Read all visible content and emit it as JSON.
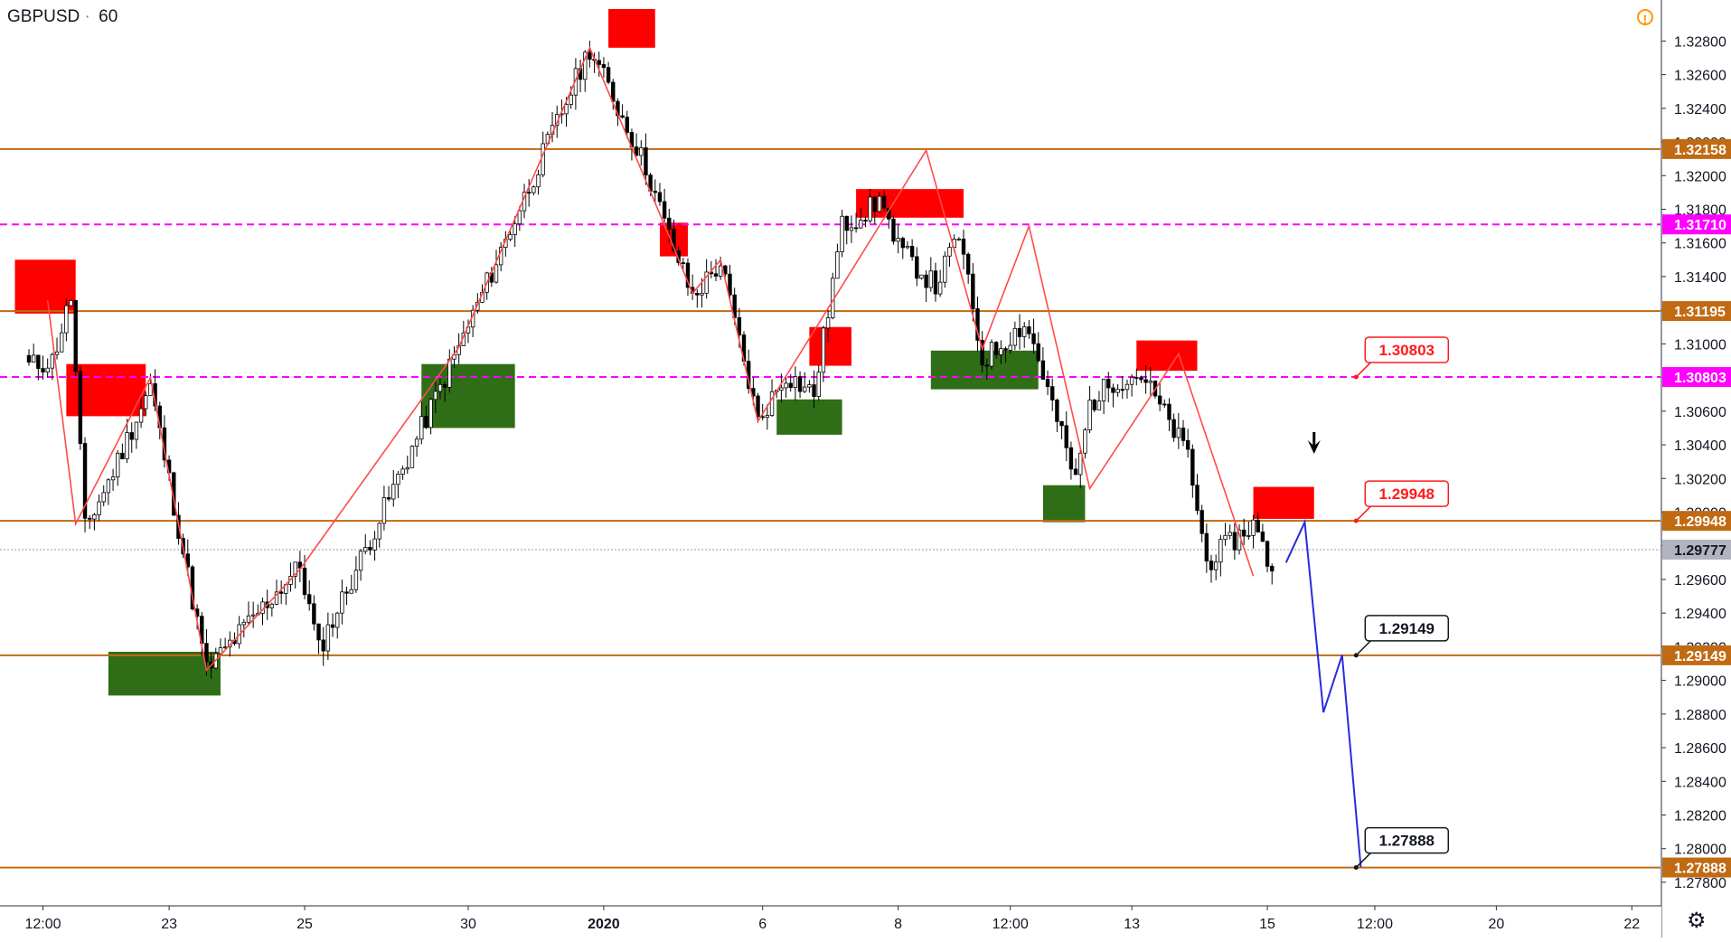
{
  "symbol": "GBPUSD",
  "interval": "60",
  "separator": "·",
  "colors": {
    "bull": "#ffffff",
    "bear": "#000000",
    "support_zone": "#2f6e16",
    "resistance_zone": "#ff0000",
    "level_line": "#c16a14",
    "magenta": "#ff00ff",
    "zigzag": "#ff4b4b",
    "projection": "#2a2adf",
    "last_price_bg": "#b2b5be"
  },
  "chart_data": {
    "type": "candlestick",
    "y_range": [
      1.2766,
      1.3299
    ],
    "y_ticks": [
      "1.32800",
      "1.32600",
      "1.32400",
      "1.32200",
      "1.32000",
      "1.31800",
      "1.31600",
      "1.31400",
      "1.31200",
      "1.31000",
      "1.30800",
      "1.30600",
      "1.30400",
      "1.30200",
      "1.30000",
      "1.29800",
      "1.29600",
      "1.29400",
      "1.29200",
      "1.29000",
      "1.28800",
      "1.28600",
      "1.28400",
      "1.28200",
      "1.28000",
      "1.27800"
    ],
    "x_ticks": [
      {
        "label": "12:00",
        "bar": 3
      },
      {
        "label": "23",
        "bar": 30
      },
      {
        "label": "25",
        "bar": 59
      },
      {
        "label": "30",
        "bar": 94
      },
      {
        "label": "2020",
        "bar": 123,
        "bold": true
      },
      {
        "label": "6",
        "bar": 157
      },
      {
        "label": "8",
        "bar": 186
      },
      {
        "label": "12:00",
        "bar": 210
      },
      {
        "label": "13",
        "bar": 236
      },
      {
        "label": "15",
        "bar": 265
      },
      {
        "label": "12:00",
        "bar": 288
      },
      {
        "label": "20",
        "bar": 314
      },
      {
        "label": "22",
        "bar": 343
      }
    ],
    "anchors": [
      [
        0,
        1.3087
      ],
      [
        5,
        1.309
      ],
      [
        9,
        1.3128
      ],
      [
        12,
        1.299
      ],
      [
        17,
        1.3018
      ],
      [
        26,
        1.3075
      ],
      [
        38,
        1.2906
      ],
      [
        58,
        1.2968
      ],
      [
        62,
        1.2918
      ],
      [
        92,
        1.3098
      ],
      [
        120,
        1.3276
      ],
      [
        132,
        1.3205
      ],
      [
        137,
        1.3164
      ],
      [
        142,
        1.3128
      ],
      [
        148,
        1.3148
      ],
      [
        156,
        1.3054
      ],
      [
        162,
        1.3082
      ],
      [
        168,
        1.307
      ],
      [
        174,
        1.317
      ],
      [
        183,
        1.3186
      ],
      [
        185,
        1.316
      ],
      [
        194,
        1.3134
      ],
      [
        199,
        1.3165
      ],
      [
        204,
        1.309
      ],
      [
        213,
        1.3112
      ],
      [
        215,
        1.31
      ],
      [
        224,
        1.3018
      ],
      [
        227,
        1.3064
      ],
      [
        232,
        1.3078
      ],
      [
        238,
        1.3082
      ],
      [
        248,
        1.3034
      ],
      [
        252,
        1.297
      ],
      [
        262,
        1.2993
      ],
      [
        266,
        1.2965
      ]
    ],
    "horizontal_levels": [
      1.32158,
      1.31195,
      1.29948,
      1.29149,
      1.27888
    ],
    "magenta_levels": [
      1.3171,
      1.30803
    ],
    "current_price": 1.29777,
    "axis_labels": [
      {
        "text": "1.32158",
        "value": 1.32158,
        "kind": "level"
      },
      {
        "text": "1.31710",
        "value": 1.3171,
        "kind": "magenta"
      },
      {
        "text": "1.31195",
        "value": 1.31195,
        "kind": "level"
      },
      {
        "text": "1.30803",
        "value": 1.30803,
        "kind": "magenta"
      },
      {
        "text": "1.29948",
        "value": 1.29948,
        "kind": "level"
      },
      {
        "text": "1.29777",
        "value": 1.29777,
        "kind": "last"
      },
      {
        "text": "1.29149",
        "value": 1.29149,
        "kind": "level"
      },
      {
        "text": "1.27888",
        "value": 1.27888,
        "kind": "level"
      }
    ],
    "callouts": [
      {
        "text": "1.30803",
        "bar": 284,
        "value": 1.30803,
        "style": "red"
      },
      {
        "text": "1.29948",
        "bar": 284,
        "value": 1.29948,
        "style": "red"
      },
      {
        "text": "1.29149",
        "bar": 284,
        "value": 1.29149,
        "style": "black"
      },
      {
        "text": "1.27888",
        "bar": 284,
        "value": 1.27888,
        "style": "black"
      }
    ],
    "resistance_zones": [
      [
        -3,
        10,
        1.315,
        1.3118
      ],
      [
        8,
        25,
        1.3088,
        1.3057
      ],
      [
        135,
        141,
        1.3172,
        1.3152
      ],
      [
        124,
        134,
        1.3299,
        1.3276
      ],
      [
        167,
        176,
        1.311,
        1.3087
      ],
      [
        177,
        200,
        1.3192,
        1.3175
      ],
      [
        237,
        250,
        1.3102,
        1.3084
      ],
      [
        262,
        275,
        1.3015,
        1.2996
      ]
    ],
    "support_zones": [
      [
        17,
        41,
        1.2917,
        1.2891
      ],
      [
        84,
        104,
        1.3088,
        1.305
      ],
      [
        160,
        174,
        1.3067,
        1.3046
      ],
      [
        193,
        216,
        1.3096,
        1.3073
      ],
      [
        217,
        226,
        1.3016,
        1.2994
      ]
    ],
    "zigzag": [
      [
        4,
        1.3126
      ],
      [
        10,
        1.2993
      ],
      [
        26,
        1.308
      ],
      [
        38,
        1.2906
      ],
      [
        58,
        1.2966
      ],
      [
        92,
        1.3098
      ],
      [
        120,
        1.3276
      ],
      [
        137,
        1.3164
      ],
      [
        142,
        1.313
      ],
      [
        148,
        1.315
      ],
      [
        156,
        1.3054
      ],
      [
        192,
        1.3215
      ],
      [
        204,
        1.3097
      ],
      [
        214,
        1.317
      ],
      [
        227,
        1.3014
      ],
      [
        246,
        1.3094
      ],
      [
        262,
        1.2962
      ]
    ],
    "projection": [
      [
        269,
        1.297
      ],
      [
        273,
        1.2994
      ],
      [
        277,
        1.2881
      ],
      [
        281,
        1.2915
      ],
      [
        285,
        1.2789
      ]
    ],
    "arrow": {
      "bar": 275,
      "value": 1.304
    }
  }
}
